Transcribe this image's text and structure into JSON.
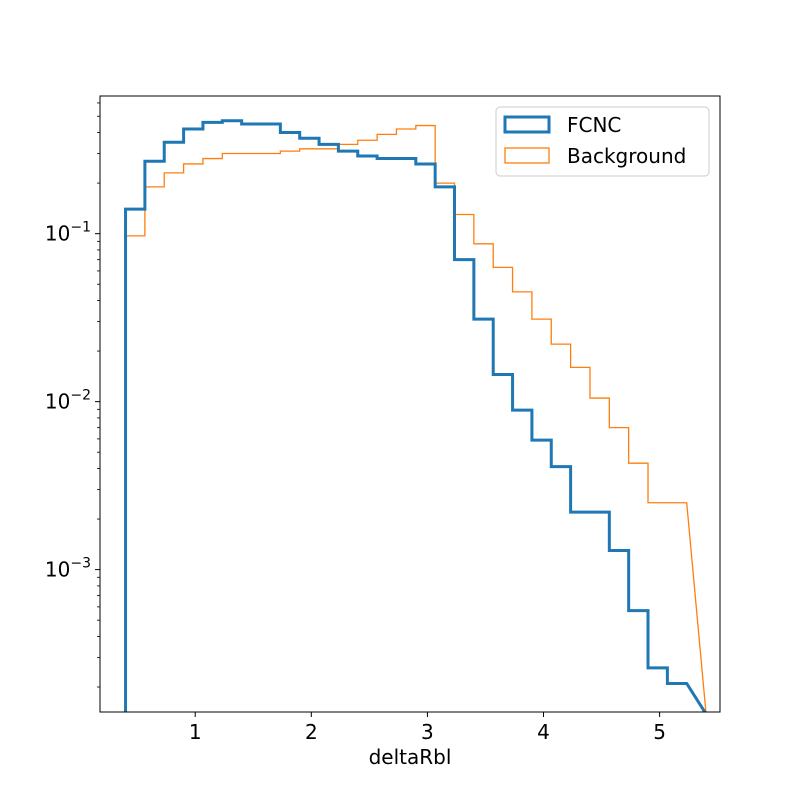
{
  "chart_data": {
    "type": "line",
    "title": "",
    "xlabel": "deltaRbl",
    "ylabel": "",
    "yscale": "log",
    "xlim": [
      0.18,
      5.52
    ],
    "ylim": [
      0.000142,
      0.66
    ],
    "grid": false,
    "legend_position": "top-right",
    "x_ticks": [
      {
        "value": 1,
        "label": "1"
      },
      {
        "value": 2,
        "label": "2"
      },
      {
        "value": 3,
        "label": "3"
      },
      {
        "value": 4,
        "label": "4"
      },
      {
        "value": 5,
        "label": "5"
      }
    ],
    "y_ticks": [
      {
        "value": 0.1,
        "base": "10",
        "exp": "−1"
      },
      {
        "value": 0.01,
        "base": "10",
        "exp": "−2"
      },
      {
        "value": 0.001,
        "base": "10",
        "exp": "−3"
      }
    ],
    "bin_edges": [
      0.4,
      0.5667,
      0.7333,
      0.9,
      1.0667,
      1.2333,
      1.4,
      1.5667,
      1.7333,
      1.9,
      2.0667,
      2.2333,
      2.4,
      2.5667,
      2.7333,
      2.9,
      3.0667,
      3.2333,
      3.4,
      3.5667,
      3.7333,
      3.9,
      4.0667,
      4.2333,
      4.4,
      4.5667,
      4.7333,
      4.9,
      5.0667,
      5.2333
    ],
    "series": [
      {
        "name": "FCNC",
        "color": "#1f77b4",
        "values": [
          0.14,
          0.27,
          0.35,
          0.42,
          0.46,
          0.47,
          0.45,
          0.45,
          0.4,
          0.37,
          0.34,
          0.31,
          0.29,
          0.28,
          0.28,
          0.26,
          0.19,
          0.07,
          0.031,
          0.0145,
          0.0089,
          0.0059,
          0.0041,
          0.0022,
          0.0022,
          0.0013,
          0.00057,
          0.00026,
          0.00021
        ]
      },
      {
        "name": "Background",
        "color": "#ff7f0e",
        "values": [
          0.097,
          0.19,
          0.23,
          0.26,
          0.28,
          0.3,
          0.3,
          0.3,
          0.31,
          0.32,
          0.32,
          0.34,
          0.36,
          0.39,
          0.42,
          0.44,
          0.2,
          0.13,
          0.087,
          0.063,
          0.045,
          0.031,
          0.022,
          0.016,
          0.0105,
          0.007,
          0.0043,
          0.0025,
          0.0025
        ]
      }
    ]
  }
}
